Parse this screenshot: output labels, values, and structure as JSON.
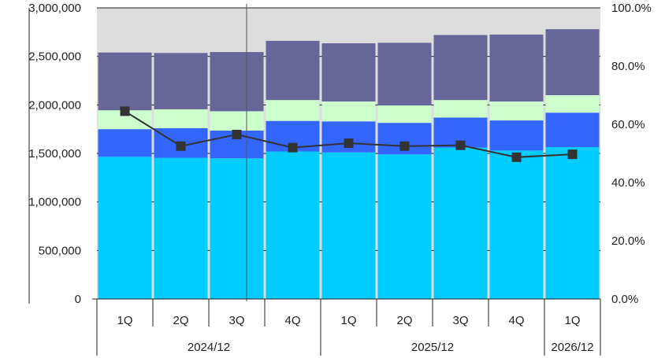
{
  "chart_data": {
    "type": "bar",
    "stacked": true,
    "categories": [
      "1Q",
      "2Q",
      "3Q",
      "4Q",
      "1Q",
      "2Q",
      "3Q",
      "4Q",
      "1Q"
    ],
    "groups": [
      {
        "label": "2024/12",
        "start": 0,
        "count": 4
      },
      {
        "label": "2025/12",
        "start": 4,
        "count": 4
      },
      {
        "label": "2026/12",
        "start": 8,
        "count": 1
      }
    ],
    "series": [
      {
        "color": "#00ccff",
        "values": [
          1465000,
          1455000,
          1450000,
          1520000,
          1510000,
          1490000,
          1560000,
          1530000,
          1565000
        ]
      },
      {
        "color": "#3366ff",
        "values": [
          285000,
          305000,
          285000,
          315000,
          320000,
          325000,
          310000,
          310000,
          355000
        ]
      },
      {
        "color": "#ccffcc",
        "values": [
          195000,
          195000,
          200000,
          215000,
          205000,
          180000,
          180000,
          195000,
          180000
        ]
      },
      {
        "color": "#666699",
        "values": [
          595000,
          580000,
          610000,
          610000,
          600000,
          645000,
          670000,
          690000,
          680000
        ]
      }
    ],
    "line": {
      "color": "#333333",
      "axis": "right",
      "values": [
        64.5,
        52.5,
        56.5,
        52.0,
        53.5,
        52.5,
        52.8,
        48.7,
        49.7
      ]
    },
    "ylim": [
      0,
      3000000
    ],
    "y_ticks": [
      "0",
      "500,000",
      "1,000,000",
      "1,500,000",
      "2,000,000",
      "2,500,000",
      "3,000,000"
    ],
    "y2lim": [
      0,
      100
    ],
    "y2_ticks": [
      "0.0%",
      "20.0%",
      "40.0%",
      "60.0%",
      "80.0%",
      "100.0%"
    ],
    "title": "",
    "xlabel": "",
    "ylabel": "",
    "grid": true,
    "plot_background": "#dddddd"
  }
}
